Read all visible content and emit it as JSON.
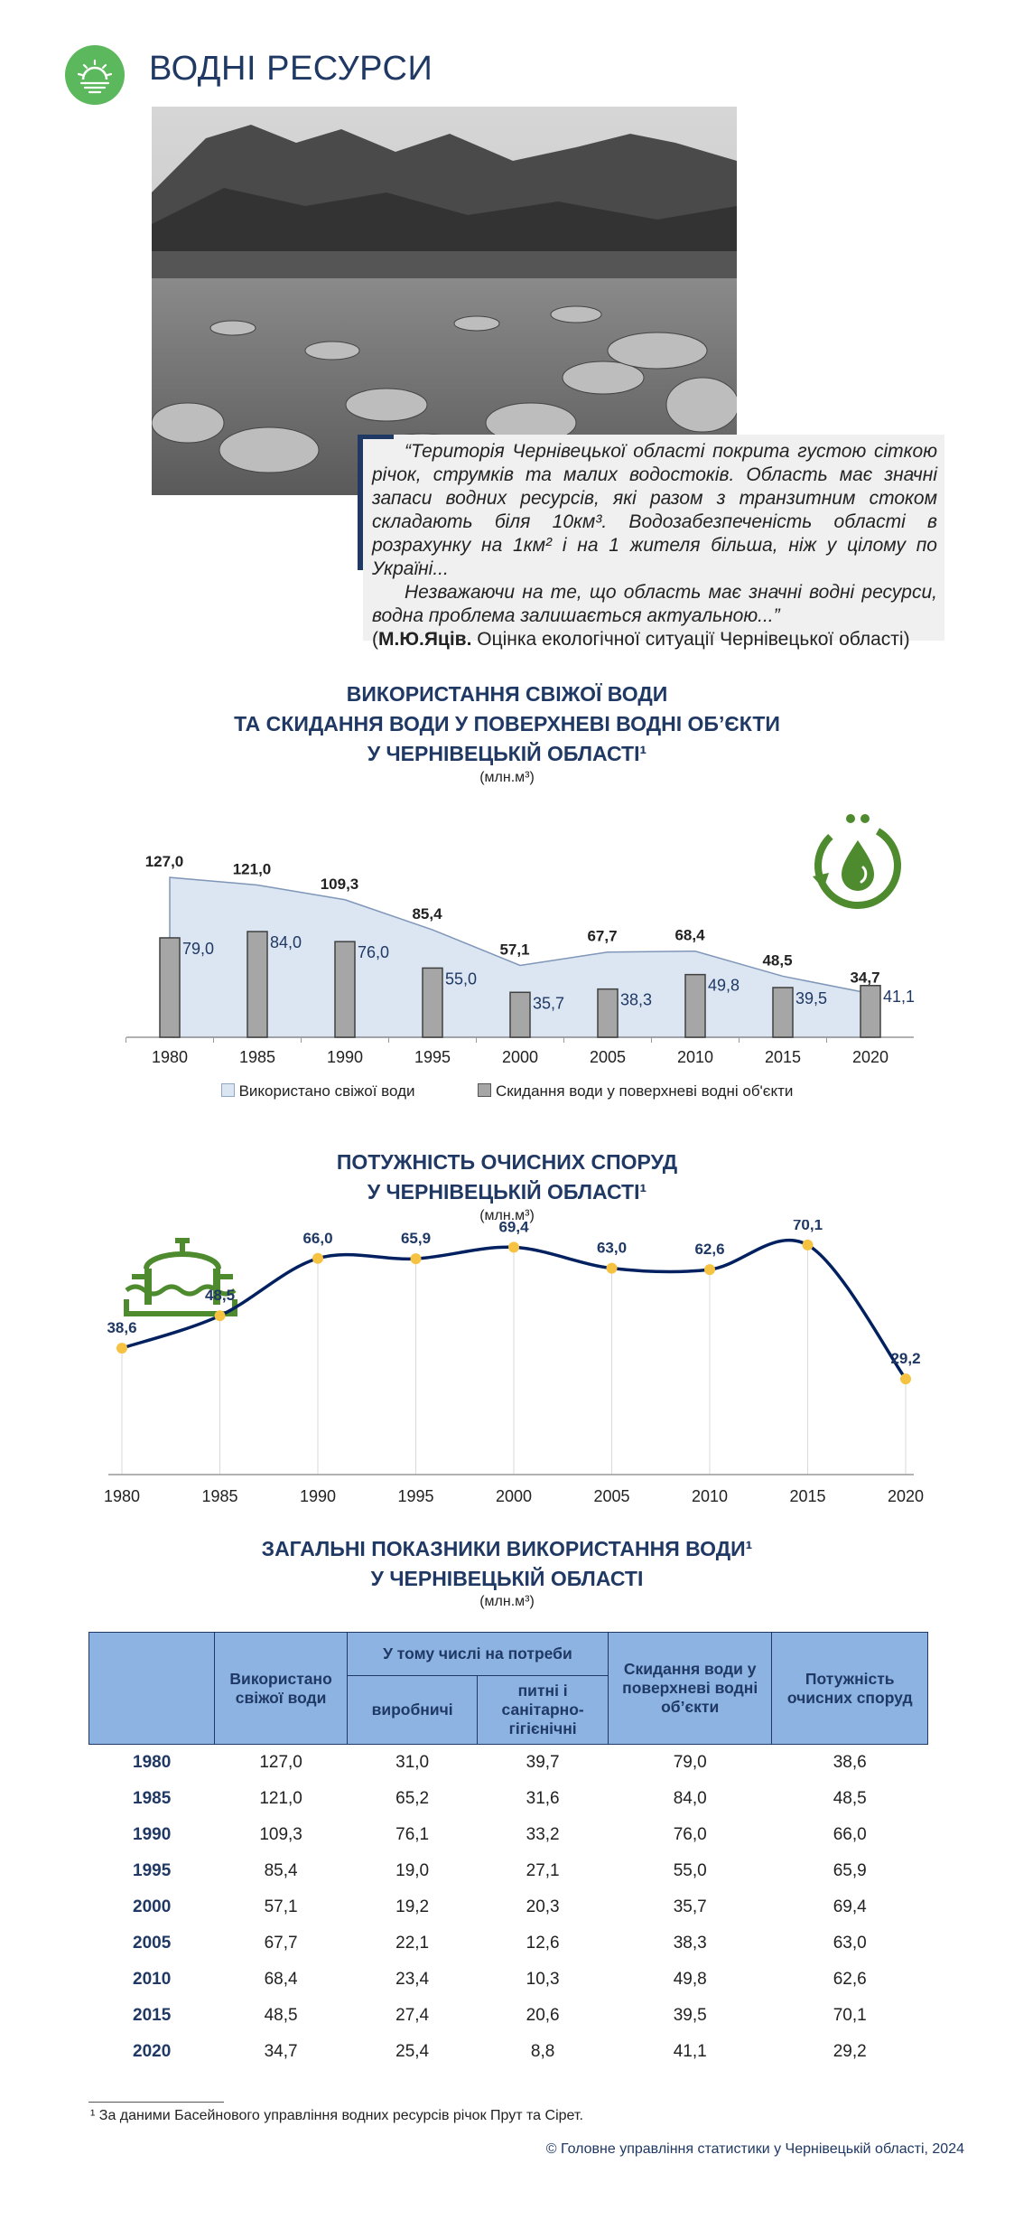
{
  "header": {
    "title": "ВОДНІ РЕСУРСИ",
    "icon": "water-sun-icon"
  },
  "quote": {
    "p1": "“Територія Чернівецької області покрита густою сіткою річок, струмків та малих водостоків. Область має значні запаси водних ресурсів, які разом з транзитним стоком складають біля 10км³. Водозабезпеченість області в розрахунку на 1км² і на 1 жителя більша, ніж у цілому по Україні...",
    "p2": "Незважаючи на те, що область має значні водні ресурси, водна проблема залишається актуальною...”",
    "author": "М.Ю.Яців.",
    "source": "Оцінка екологічної ситуації Чернівецької області"
  },
  "chart1": {
    "title_line1": "ВИКОРИСТАННЯ СВІЖОЇ ВОДИ",
    "title_line2": "ТА СКИДАННЯ ВОДИ У ПОВЕРХНЕВІ ВОДНІ ОБ’ЄКТИ",
    "title_line3": "У ЧЕРНІВЕЦЬКІЙ ОБЛАСТІ¹",
    "unit": "(млн.м³)",
    "icon": "water-recycle-icon"
  },
  "chart2": {
    "title_line1": "ПОТУЖНІСТЬ ОЧИСНИХ СПОРУД",
    "title_line2": "У ЧЕРНІВЕЦЬКІЙ ОБЛАСТІ¹",
    "unit": "(млн.м³)",
    "icon": "treatment-plant-icon"
  },
  "chart_data": [
    {
      "type": "bar",
      "categories": [
        "1980",
        "1985",
        "1990",
        "1995",
        "2000",
        "2005",
        "2010",
        "2015",
        "2020"
      ],
      "series": [
        {
          "name": "Використано свіжої води",
          "type": "area",
          "values": [
            127.0,
            121.0,
            109.3,
            85.4,
            57.1,
            67.7,
            68.4,
            48.5,
            34.7
          ],
          "labels": [
            "127,0",
            "121,0",
            "109,3",
            "85,4",
            "57,1",
            "67,7",
            "68,4",
            "48,5",
            "34,7"
          ],
          "color": "#dce6f2"
        },
        {
          "name": "Скидання води у поверхневі водні об'єкти",
          "type": "bar",
          "values": [
            79.0,
            84.0,
            76.0,
            55.0,
            35.7,
            38.3,
            49.8,
            39.5,
            41.1
          ],
          "labels": [
            "79,0",
            "84,0",
            "76,0",
            "55,0",
            "35,7",
            "38,3",
            "49,8",
            "39,5",
            "41,1"
          ],
          "color": "#a6a6a6"
        }
      ],
      "ylim": [
        0,
        140
      ],
      "legend": "bottom"
    },
    {
      "type": "line",
      "categories": [
        "1980",
        "1985",
        "1990",
        "1995",
        "2000",
        "2005",
        "2010",
        "2015",
        "2020"
      ],
      "series": [
        {
          "values": [
            38.6,
            48.5,
            66.0,
            65.9,
            69.4,
            63.0,
            62.6,
            70.1,
            29.2
          ],
          "labels": [
            "38,6",
            "48,5",
            "66,0",
            "65,9",
            "69,4",
            "63,0",
            "62,6",
            "70,1",
            "29,2"
          ],
          "color": "#002060",
          "marker_color": "#f5c242"
        }
      ],
      "ylim": [
        0,
        80
      ],
      "grid": "vertical"
    }
  ],
  "table": {
    "title_line1": "ЗАГАЛЬНІ ПОКАЗНИКИ ВИКОРИСТАННЯ ВОДИ¹",
    "title_line2": "У ЧЕРНІВЕЦЬКІЙ ОБЛАСТІ",
    "unit": "(млн.м³)",
    "headers": {
      "used": "Використано свіжої води",
      "group": "У тому числі на потреби",
      "production": "виробничі",
      "drinking": "питні і санітарно-гігієнічні",
      "discharge": "Скидання води у поверхневі водні об’єкти",
      "capacity": "Потужність очисних споруд"
    },
    "rows": [
      [
        "1980",
        "127,0",
        "31,0",
        "39,7",
        "79,0",
        "38,6"
      ],
      [
        "1985",
        "121,0",
        "65,2",
        "31,6",
        "84,0",
        "48,5"
      ],
      [
        "1990",
        "109,3",
        "76,1",
        "33,2",
        "76,0",
        "66,0"
      ],
      [
        "1995",
        "85,4",
        "19,0",
        "27,1",
        "55,0",
        "65,9"
      ],
      [
        "2000",
        "57,1",
        "19,2",
        "20,3",
        "35,7",
        "69,4"
      ],
      [
        "2005",
        "67,7",
        "22,1",
        "12,6",
        "38,3",
        "63,0"
      ],
      [
        "2010",
        "68,4",
        "23,4",
        "10,3",
        "49,8",
        "62,6"
      ],
      [
        "2015",
        "48,5",
        "27,4",
        "20,6",
        "39,5",
        "70,1"
      ],
      [
        "2020",
        "34,7",
        "25,4",
        "8,8",
        "41,1",
        "29,2"
      ]
    ]
  },
  "footnote": "¹ За даними Басейнового управління водних ресурсів річок Прут та Сірет.",
  "copyright": "© Головне управління статистики у Чернівецькій області, 2024",
  "colors": {
    "navy": "#1f3864",
    "green": "#5cb85c",
    "icon_green": "#4e8a2e",
    "header_blue": "#8db3e2"
  }
}
